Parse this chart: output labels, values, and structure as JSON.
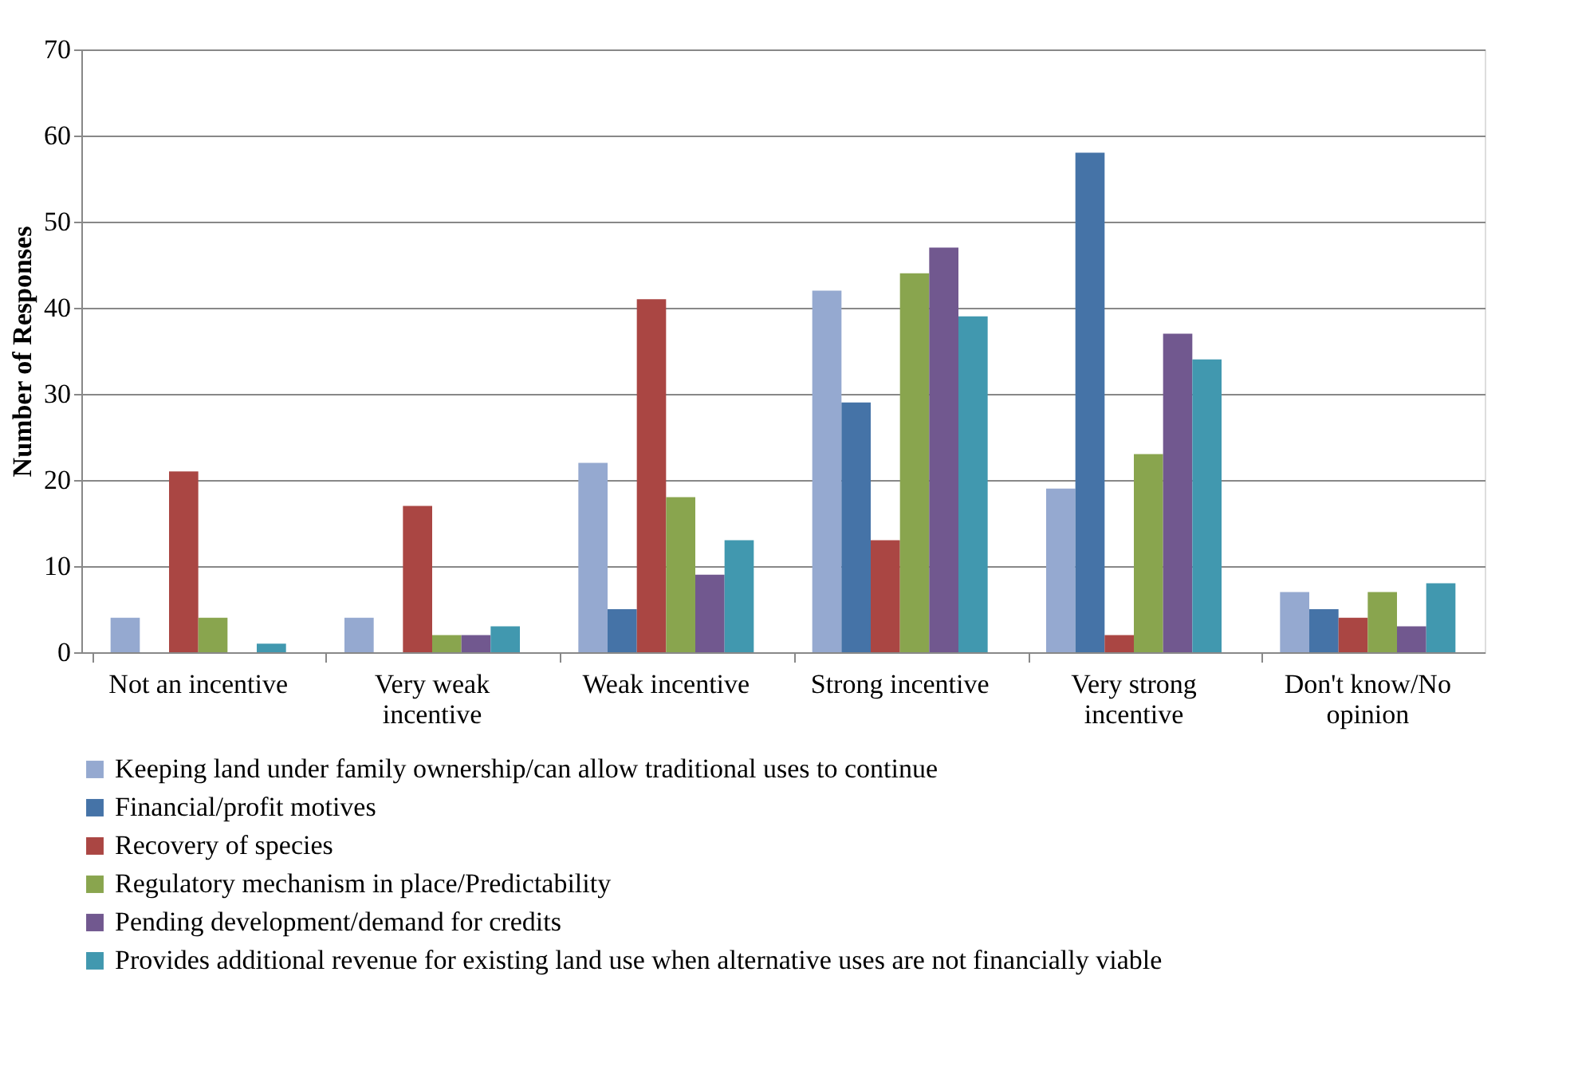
{
  "chart_data": {
    "type": "bar",
    "ylabel": "Number of Responses",
    "categories": [
      "Not an incentive",
      "Very weak incentive",
      "Weak incentive",
      "Strong incentive",
      "Very strong incentive",
      "Don't know/No opinion"
    ],
    "series": [
      {
        "name": "Keeping land under family ownership/can allow traditional uses to continue",
        "color": "#95a9d0",
        "values": [
          4,
          4,
          22,
          42,
          19,
          7
        ]
      },
      {
        "name": "Financial/profit motives",
        "color": "#4573a7",
        "values": [
          0,
          0,
          5,
          29,
          58,
          5
        ]
      },
      {
        "name": "Recovery of species",
        "color": "#aa4643",
        "values": [
          21,
          17,
          41,
          13,
          2,
          4
        ]
      },
      {
        "name": "Regulatory mechanism in place/Predictability",
        "color": "#89a54e",
        "values": [
          4,
          2,
          18,
          44,
          23,
          7
        ]
      },
      {
        "name": "Pending development/demand for credits",
        "color": "#71588f",
        "values": [
          0,
          2,
          9,
          47,
          37,
          3
        ]
      },
      {
        "name": "Provides additional revenue for existing land use when alternative uses are not financially viable",
        "color": "#4198af",
        "values": [
          1,
          3,
          13,
          39,
          34,
          8
        ]
      }
    ],
    "ylim": [
      0,
      70
    ],
    "yticks": [
      0,
      10,
      20,
      30,
      40,
      50,
      60,
      70
    ],
    "grid": "y",
    "legend": "bottom"
  }
}
